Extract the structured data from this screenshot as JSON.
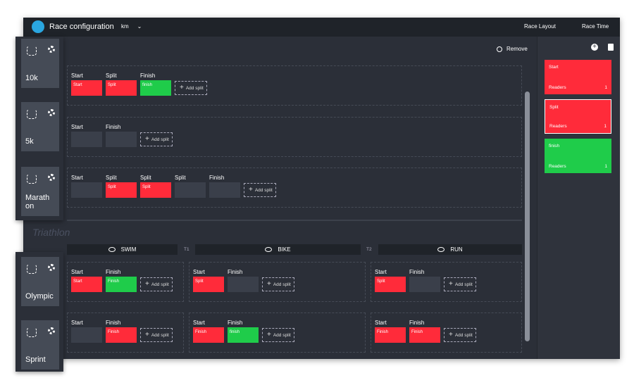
{
  "header": {
    "title": "Race configuration",
    "unit": "km",
    "menu": [
      "Race Layout",
      "Race Time"
    ]
  },
  "remove": "Remove",
  "add_split": "Add split",
  "races": [
    {
      "name": "10k",
      "splits": [
        {
          "label": "Start",
          "box": "Start",
          "color": "#ff2b3a"
        },
        {
          "label": "Split",
          "box": "Split",
          "color": "#ff2b3a"
        },
        {
          "label": "Finish",
          "box": "finish",
          "color": "#1fcc4a"
        }
      ]
    },
    {
      "name": "5k",
      "splits": [
        {
          "label": "Start"
        },
        {
          "label": "Finish"
        }
      ]
    },
    {
      "name": "Marathon",
      "splits": [
        {
          "label": "Start"
        },
        {
          "label": "Split",
          "box": "Split",
          "color": "#ff2b3a"
        },
        {
          "label": "Split",
          "box": "Split",
          "color": "#ff2b3a"
        },
        {
          "label": "Split"
        },
        {
          "label": "Finish"
        }
      ]
    }
  ],
  "triathlon": {
    "title": "Triathlon",
    "legs": [
      "SWIM",
      "BIKE",
      "RUN"
    ],
    "transitions": [
      "T1",
      "T2"
    ],
    "races": [
      {
        "name": "Olympic",
        "legs": [
          [
            {
              "label": "Start",
              "box": "Start",
              "color": "#ff2b3a"
            },
            {
              "label": "Finish",
              "box": "Finish",
              "color": "#1fcc4a"
            }
          ],
          [
            {
              "label": "Start",
              "box": "Split",
              "color": "#ff2b3a"
            },
            {
              "label": "Finish"
            }
          ],
          [
            {
              "label": "Start",
              "box": "Split",
              "color": "#ff2b3a"
            },
            {
              "label": "Finish"
            }
          ]
        ]
      },
      {
        "name": "Sprint",
        "legs": [
          [
            {
              "label": "Start"
            },
            {
              "label": "Finish",
              "box": "Finish",
              "color": "#ff2b3a"
            }
          ],
          [
            {
              "label": "Start",
              "box": "Finish",
              "color": "#ff2b3a"
            },
            {
              "label": "Finish",
              "box": "finish",
              "color": "#1fcc4a"
            }
          ],
          [
            {
              "label": "Start",
              "box": "Finish",
              "color": "#ff2b3a"
            },
            {
              "label": "Finish",
              "box": "Finish",
              "color": "#ff2b3a"
            }
          ]
        ]
      }
    ]
  },
  "readers": [
    {
      "name": "Start",
      "label": "Readers",
      "count": 1,
      "color": "#ff2b3a"
    },
    {
      "name": "Split",
      "label": "Readers",
      "count": 1,
      "color": "#ff2b3a",
      "selected": true
    },
    {
      "name": "finish",
      "label": "Readers",
      "count": 1,
      "color": "#1fcc4a"
    }
  ]
}
